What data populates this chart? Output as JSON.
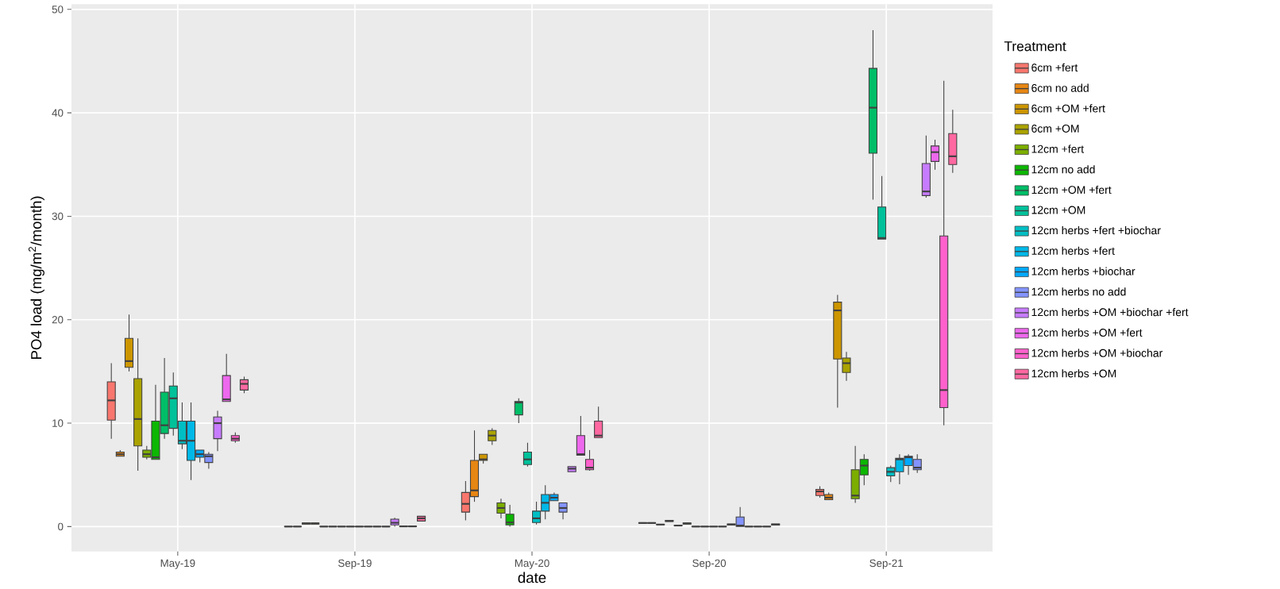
{
  "chart_data": {
    "type": "box",
    "xlabel": "date",
    "ylabel": "PO4 load (mg/m$^{2}$/month)",
    "legend_title": "Treatment",
    "legend": "right",
    "grid": true,
    "categories": [
      "May-19",
      "Sep-19",
      "May-20",
      "Sep-20",
      "Sep-21"
    ],
    "ylim": [
      -2.4,
      50.5
    ],
    "yticks": [
      0,
      10,
      20,
      30,
      40,
      50
    ],
    "series": [
      {
        "name": "6cm +fert",
        "color": "#f8766d",
        "boxes": [
          {
            "low": 8.5,
            "q1": 10.3,
            "median": 12.2,
            "q3": 14.0,
            "high": 15.8
          },
          {
            "low": 0,
            "q1": 0,
            "median": 0,
            "q3": 0.02,
            "high": 0.02
          },
          {
            "low": 0.6,
            "q1": 1.4,
            "median": 2.2,
            "q3": 3.3,
            "high": 4.4
          },
          {
            "low": 0.32,
            "q1": 0.32,
            "median": 0.35,
            "q3": 0.38,
            "high": 0.38
          },
          {
            "low": 2.8,
            "q1": 3.0,
            "median": 3.4,
            "q3": 3.6,
            "high": 3.9
          }
        ]
      },
      {
        "name": "6cm no add",
        "color": "#e68613",
        "boxes": [
          {
            "low": 6.8,
            "q1": 6.8,
            "median": 7.0,
            "q3": 7.2,
            "high": 7.4
          },
          {
            "low": 0,
            "q1": 0,
            "median": 0,
            "q3": 0.02,
            "high": 0.02
          },
          {
            "low": 2.4,
            "q1": 2.9,
            "median": 3.5,
            "q3": 6.4,
            "high": 9.3
          },
          {
            "low": 0.32,
            "q1": 0.32,
            "median": 0.35,
            "q3": 0.38,
            "high": 0.38
          },
          {
            "low": 2.6,
            "q1": 2.6,
            "median": 2.8,
            "q3": 3.1,
            "high": 3.3
          }
        ]
      },
      {
        "name": "6cm +OM +fert",
        "color": "#cd9600",
        "boxes": [
          {
            "low": 15.0,
            "q1": 15.4,
            "median": 16.0,
            "q3": 18.2,
            "high": 20.5
          },
          {
            "low": 0.25,
            "q1": 0.25,
            "median": 0.3,
            "q3": 0.35,
            "high": 0.35
          },
          {
            "low": 6.1,
            "q1": 6.4,
            "median": 6.5,
            "q3": 7.0,
            "high": 7.0
          },
          {
            "low": 0.18,
            "q1": 0.18,
            "median": 0.2,
            "q3": 0.22,
            "high": 0.22
          },
          {
            "low": 11.5,
            "q1": 16.2,
            "median": 20.9,
            "q3": 21.7,
            "high": 22.4
          }
        ]
      },
      {
        "name": "6cm +OM",
        "color": "#aba300",
        "boxes": [
          {
            "low": 5.4,
            "q1": 7.8,
            "median": 10.4,
            "q3": 14.3,
            "high": 18.2
          },
          {
            "low": 0.25,
            "q1": 0.25,
            "median": 0.3,
            "q3": 0.35,
            "high": 0.35
          },
          {
            "low": 7.9,
            "q1": 8.3,
            "median": 8.8,
            "q3": 9.3,
            "high": 9.5
          },
          {
            "low": 0.5,
            "q1": 0.5,
            "median": 0.55,
            "q3": 0.6,
            "high": 0.6
          },
          {
            "low": 14.1,
            "q1": 14.9,
            "median": 15.8,
            "q3": 16.3,
            "high": 16.9
          }
        ]
      },
      {
        "name": "12cm +fert",
        "color": "#7cae00",
        "boxes": [
          {
            "low": 6.5,
            "q1": 6.7,
            "median": 7.0,
            "q3": 7.4,
            "high": 7.8
          },
          {
            "low": 0,
            "q1": 0,
            "median": 0,
            "q3": 0.02,
            "high": 0.02
          },
          {
            "low": 0.8,
            "q1": 1.3,
            "median": 1.8,
            "q3": 2.3,
            "high": 2.7
          },
          {
            "low": 0.08,
            "q1": 0.08,
            "median": 0.1,
            "q3": 0.12,
            "high": 0.12
          },
          {
            "low": 2.3,
            "q1": 2.7,
            "median": 3.0,
            "q3": 5.5,
            "high": 7.8
          }
        ]
      },
      {
        "name": "12cm no add",
        "color": "#0cb702",
        "boxes": [
          {
            "low": 6.5,
            "q1": 6.5,
            "median": 6.7,
            "q3": 10.2,
            "high": 13.7
          },
          {
            "low": 0,
            "q1": 0,
            "median": 0,
            "q3": 0.02,
            "high": 0.02
          },
          {
            "low": 0.0,
            "q1": 0.16,
            "median": 0.4,
            "q3": 1.2,
            "high": 2.1
          },
          {
            "low": 0.25,
            "q1": 0.25,
            "median": 0.3,
            "q3": 0.35,
            "high": 0.35
          },
          {
            "low": 4.0,
            "q1": 5.0,
            "median": 5.9,
            "q3": 6.5,
            "high": 7.0
          }
        ]
      },
      {
        "name": "12cm +OM +fert",
        "color": "#00be67",
        "boxes": [
          {
            "low": 8.5,
            "q1": 9.0,
            "median": 9.8,
            "q3": 13.0,
            "high": 16.3
          },
          {
            "low": 0,
            "q1": 0,
            "median": 0,
            "q3": 0.02,
            "high": 0.02
          },
          {
            "low": 10.0,
            "q1": 10.8,
            "median": 12.0,
            "q3": 12.1,
            "high": 12.4
          },
          {
            "low": 0,
            "q1": 0,
            "median": 0,
            "q3": 0.02,
            "high": 0.02
          },
          {
            "low": 31.6,
            "q1": 36.1,
            "median": 40.5,
            "q3": 44.3,
            "high": 48.0
          }
        ]
      },
      {
        "name": "12cm +OM",
        "color": "#00c19a",
        "boxes": [
          {
            "low": 8.8,
            "q1": 9.5,
            "median": 12.4,
            "q3": 13.6,
            "high": 14.9
          },
          {
            "low": 0,
            "q1": 0,
            "median": 0,
            "q3": 0.02,
            "high": 0.02
          },
          {
            "low": 5.8,
            "q1": 6.0,
            "median": 6.5,
            "q3": 7.2,
            "high": 8.1
          },
          {
            "low": 0,
            "q1": 0,
            "median": 0,
            "q3": 0.02,
            "high": 0.02
          },
          {
            "low": 27.8,
            "q1": 27.8,
            "median": 27.9,
            "q3": 30.9,
            "high": 33.9
          }
        ]
      },
      {
        "name": "12cm herbs +fert +biochar",
        "color": "#00bfc4",
        "boxes": [
          {
            "low": 7.5,
            "q1": 8.0,
            "median": 8.3,
            "q3": 10.2,
            "high": 12.0
          },
          {
            "low": 0,
            "q1": 0,
            "median": 0,
            "q3": 0.02,
            "high": 0.02
          },
          {
            "low": 0.2,
            "q1": 0.4,
            "median": 0.8,
            "q3": 1.5,
            "high": 2.4
          },
          {
            "low": 0,
            "q1": 0,
            "median": 0,
            "q3": 0.02,
            "high": 0.02
          },
          {
            "low": 4.3,
            "q1": 4.9,
            "median": 5.3,
            "q3": 5.7,
            "high": 5.9
          }
        ]
      },
      {
        "name": "12cm herbs +fert",
        "color": "#00b8e7",
        "boxes": [
          {
            "low": 4.5,
            "q1": 6.4,
            "median": 8.3,
            "q3": 10.2,
            "high": 12.0
          },
          {
            "low": 0,
            "q1": 0,
            "median": 0,
            "q3": 0.02,
            "high": 0.02
          },
          {
            "low": 0.7,
            "q1": 1.5,
            "median": 2.3,
            "q3": 3.1,
            "high": 4.0
          },
          {
            "low": 0,
            "q1": 0,
            "median": 0,
            "q3": 0.02,
            "high": 0.02
          },
          {
            "low": 4.1,
            "q1": 5.3,
            "median": 6.5,
            "q3": 6.6,
            "high": 7.0
          }
        ]
      },
      {
        "name": "12cm herbs +biochar",
        "color": "#00a9ff",
        "boxes": [
          {
            "low": 6.2,
            "q1": 6.7,
            "median": 7.0,
            "q3": 7.4,
            "high": 7.4
          },
          {
            "low": 0,
            "q1": 0,
            "median": 0,
            "q3": 0.02,
            "high": 0.02
          },
          {
            "low": 2.5,
            "q1": 2.5,
            "median": 2.8,
            "q3": 3.1,
            "high": 3.3
          },
          {
            "low": 0.15,
            "q1": 0.15,
            "median": 0.2,
            "q3": 0.25,
            "high": 0.25
          },
          {
            "low": 5.0,
            "q1": 5.9,
            "median": 6.7,
            "q3": 6.8,
            "high": 7.0
          }
        ]
      },
      {
        "name": "12cm herbs no add",
        "color": "#8494ff",
        "boxes": [
          {
            "low": 5.6,
            "q1": 6.2,
            "median": 6.8,
            "q3": 7.0,
            "high": 7.2
          },
          {
            "low": 0,
            "q1": 0,
            "median": 0,
            "q3": 0.02,
            "high": 0.02
          },
          {
            "low": 0.7,
            "q1": 1.4,
            "median": 1.8,
            "q3": 2.3,
            "high": 2.3
          },
          {
            "low": 0.02,
            "q1": 0.02,
            "median": 0.1,
            "q3": 0.93,
            "high": 1.9
          },
          {
            "low": 5.2,
            "q1": 5.5,
            "median": 5.7,
            "q3": 6.5,
            "high": 7.0
          }
        ]
      },
      {
        "name": "12cm herbs +OM +biochar +fert",
        "color": "#c77cff",
        "boxes": [
          {
            "low": 7.3,
            "q1": 8.5,
            "median": 10.0,
            "q3": 10.6,
            "high": 11.2
          },
          {
            "low": 0,
            "q1": 0.16,
            "median": 0.37,
            "q3": 0.72,
            "high": 0.86
          },
          {
            "low": 5.3,
            "q1": 5.3,
            "median": 5.6,
            "q3": 5.8,
            "high": 5.8
          },
          {
            "low": 0,
            "q1": 0,
            "median": 0,
            "q3": 0.02,
            "high": 0.02
          },
          {
            "low": 31.8,
            "q1": 32.0,
            "median": 32.4,
            "q3": 35.1,
            "high": 37.8
          }
        ]
      },
      {
        "name": "12cm herbs +OM +fert",
        "color": "#ed68ed",
        "boxes": [
          {
            "low": 12.1,
            "q1": 12.1,
            "median": 12.3,
            "q3": 14.6,
            "high": 16.7
          },
          {
            "low": 0,
            "q1": 0,
            "median": 0.02,
            "q3": 0.05,
            "high": 0.05
          },
          {
            "low": 6.9,
            "q1": 6.9,
            "median": 7.0,
            "q3": 8.8,
            "high": 10.7
          },
          {
            "low": 0,
            "q1": 0,
            "median": 0,
            "q3": 0.02,
            "high": 0.02
          },
          {
            "low": 34.5,
            "q1": 35.3,
            "median": 36.2,
            "q3": 36.8,
            "high": 37.4
          }
        ]
      },
      {
        "name": "12cm herbs +OM +biochar",
        "color": "#ff61cc",
        "boxes": [
          {
            "low": 8.1,
            "q1": 8.3,
            "median": 8.5,
            "q3": 8.8,
            "high": 9.1
          },
          {
            "low": 0,
            "q1": 0,
            "median": 0.02,
            "q3": 0.05,
            "high": 0.05
          },
          {
            "low": 5.4,
            "q1": 5.5,
            "median": 5.7,
            "q3": 6.5,
            "high": 7.4
          },
          {
            "low": 0,
            "q1": 0,
            "median": 0,
            "q3": 0.02,
            "high": 0.02
          },
          {
            "low": 9.8,
            "q1": 11.5,
            "median": 13.2,
            "q3": 28.1,
            "high": 43.1
          }
        ]
      },
      {
        "name": "12cm herbs +OM",
        "color": "#ff68a1",
        "boxes": [
          {
            "low": 12.9,
            "q1": 13.2,
            "median": 13.8,
            "q3": 14.2,
            "high": 14.5
          },
          {
            "low": 0.54,
            "q1": 0.54,
            "median": 0.8,
            "q3": 1.0,
            "high": 1.0
          },
          {
            "low": 8.6,
            "q1": 8.6,
            "median": 8.8,
            "q3": 10.2,
            "high": 11.6
          },
          {
            "low": 0.15,
            "q1": 0.15,
            "median": 0.2,
            "q3": 0.25,
            "high": 0.25
          },
          {
            "low": 34.2,
            "q1": 35.0,
            "median": 35.8,
            "q3": 38.0,
            "high": 40.3
          }
        ]
      }
    ]
  }
}
